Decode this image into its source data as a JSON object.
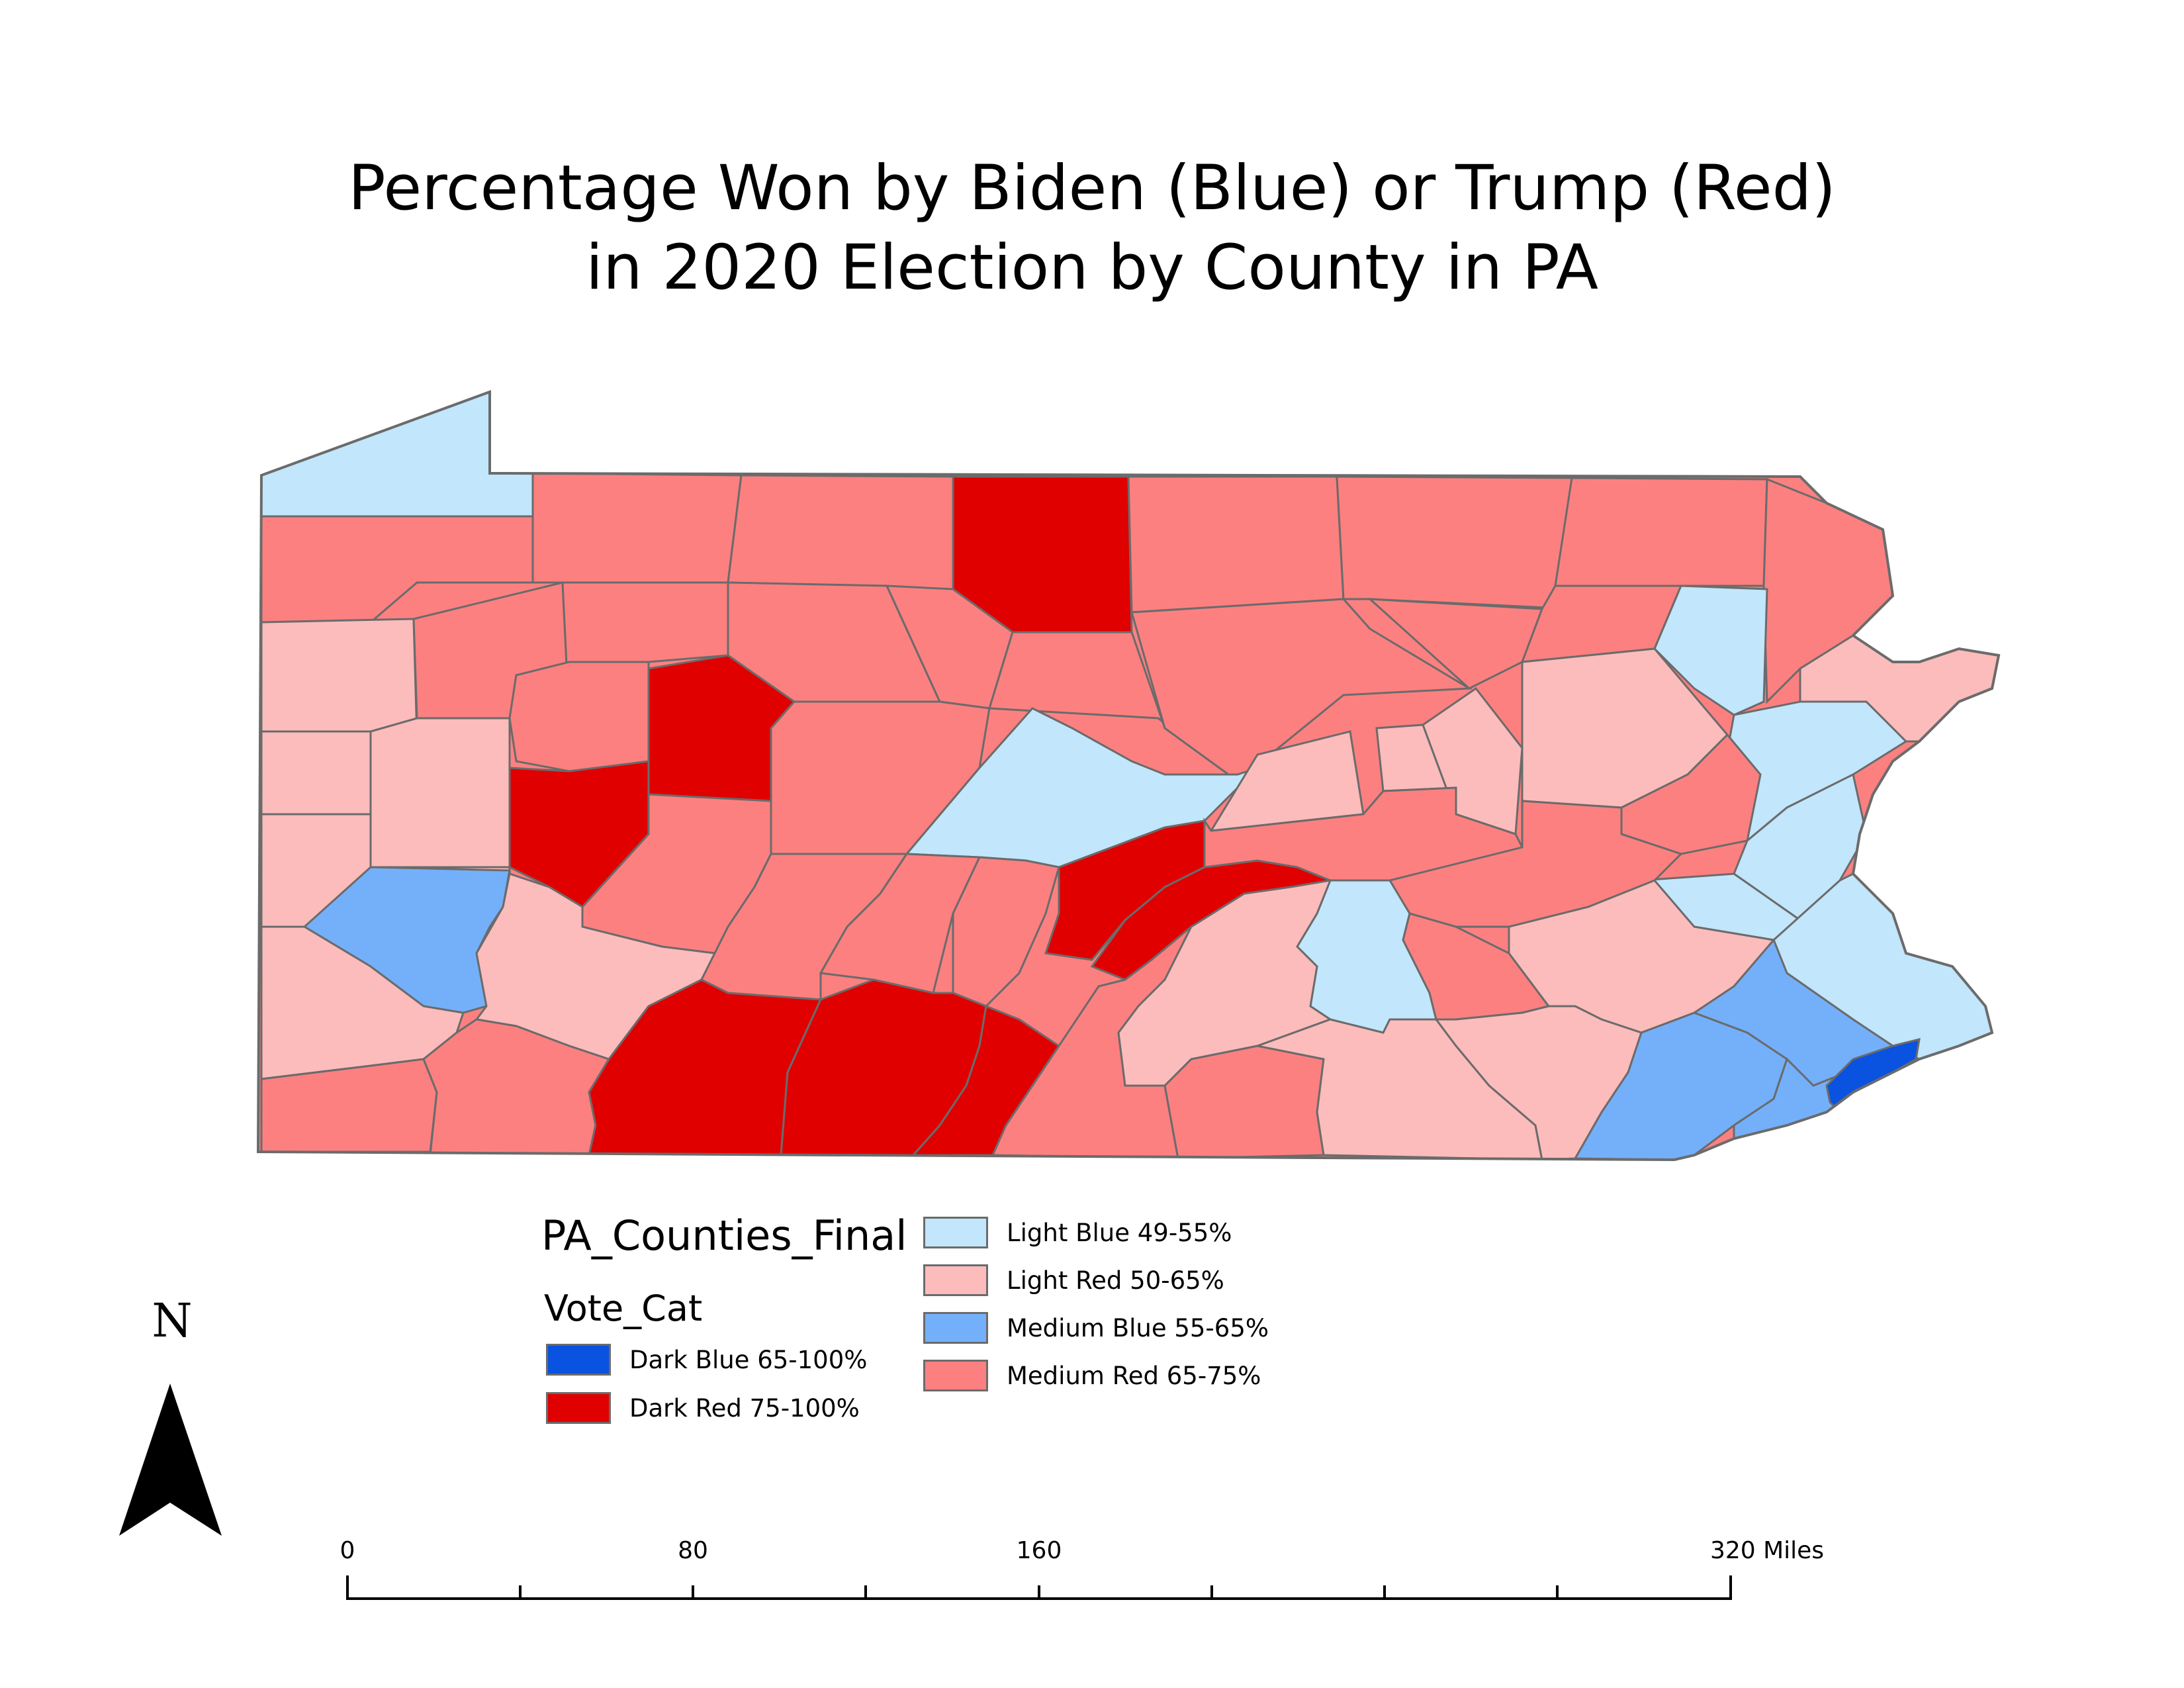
{
  "title": {
    "line1": "Percentage Won by Biden (Blue) or Trump (Red)",
    "line2": "in 2020 Election by County in PA"
  },
  "legend": {
    "layer_name": "PA_Counties_Final",
    "field_name": "Vote_Cat",
    "items": [
      {
        "label": "Dark Blue 65-100%",
        "color": "#0a52e0"
      },
      {
        "label": "Dark Red 75-100%",
        "color": "#e00000"
      },
      {
        "label": "Light Blue 49-55%",
        "color": "#c2e6fb"
      },
      {
        "label": "Light Red 50-65%",
        "color": "#fcbcbc"
      },
      {
        "label": "Medium Blue 55-65%",
        "color": "#74b0fa"
      },
      {
        "label": "Medium Red 65-75%",
        "color": "#fc8080"
      }
    ]
  },
  "north_arrow": {
    "label": "N",
    "icon": "north-arrow-icon"
  },
  "scale_bar": {
    "labels": [
      "0",
      "80",
      "160",
      "320 Miles"
    ]
  }
}
